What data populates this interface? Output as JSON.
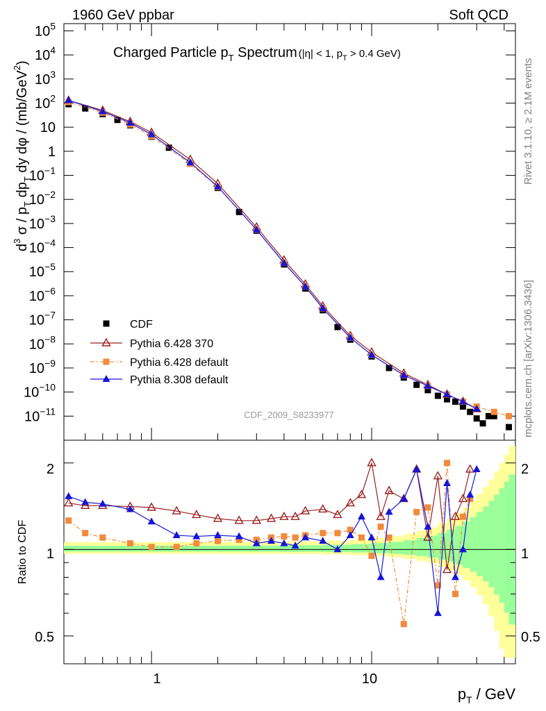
{
  "header": {
    "left": "1960 GeV ppbar",
    "right": "Soft QCD"
  },
  "main_panel": {
    "title_main": "Charged Particle p",
    "title_main_sub": "T",
    "title_main_rest": " Spectrum",
    "title_cut": "(|η| < 1, p",
    "title_cut_sub": "T",
    "title_cut_rest": " > 0.4 GeV)",
    "ylabel": "d³σ / p_T dp_T dy dφ / (mb/GeV²)",
    "analysis_tag": "CDF_2009_S8233977"
  },
  "ratio_panel": {
    "ylabel": "Ratio to CDF",
    "ytick_labels": [
      "2",
      "1",
      "0.5"
    ],
    "ytick_labels_right": [
      "2",
      "1",
      "0.5"
    ]
  },
  "x_axis": {
    "label": "p_T / GeV",
    "tick_labels": [
      "1",
      "10"
    ]
  },
  "side_text": {
    "rivet": "Rivet 3.1.10, ≥ 2.1M events",
    "mcplots": "mcplots.cern.ch [arXiv:1306.3436]"
  },
  "legend": [
    {
      "name": "CDF",
      "marker": "square",
      "color": "#000000"
    },
    {
      "name": "Pythia 6.428 370",
      "marker": "open-triangle",
      "color": "#9a1f1f"
    },
    {
      "name": "Pythia 6.428 default",
      "marker": "square",
      "color": "#f28a3c"
    },
    {
      "name": "Pythia 8.308 default",
      "marker": "triangle",
      "color": "#1515d8"
    }
  ],
  "chart_data": {
    "type": "scatter",
    "title": "Charged Particle pT Spectrum (|η| < 1, pT > 0.4 GeV)",
    "xlabel": "pT / GeV",
    "ylabel": "d3σ / pT dpT dy dφ / (mb/GeV2)",
    "x_scale": "log",
    "y_scale": "log",
    "xlim": [
      0.4,
      45
    ],
    "ylim": [
      1e-12,
      200000
    ],
    "y_tick_values": [
      "1e-11",
      "1e-10",
      "1e-09",
      "1e-08",
      "1e-07",
      "1e-06",
      "1e-05",
      "1e-04",
      "0.001",
      "0.01",
      "0.1",
      "1",
      "10",
      "100",
      "1000",
      "10000",
      "100000"
    ],
    "y_tick_labels": [
      {
        "base": "10",
        "exp": "−11"
      },
      {
        "base": "10",
        "exp": "−10"
      },
      {
        "base": "10",
        "exp": "−9"
      },
      {
        "base": "10",
        "exp": "−8"
      },
      {
        "base": "10",
        "exp": "−7"
      },
      {
        "base": "10",
        "exp": "−6"
      },
      {
        "base": "10",
        "exp": "−5"
      },
      {
        "base": "10",
        "exp": "−4"
      },
      {
        "base": "10",
        "exp": "−3"
      },
      {
        "base": "10",
        "exp": "−2"
      },
      {
        "base": "10",
        "exp": "−1"
      },
      {
        "base": "1",
        "exp": ""
      },
      {
        "base": "10",
        "exp": ""
      },
      {
        "base": "10",
        "exp": "2"
      },
      {
        "base": "10",
        "exp": "3"
      },
      {
        "base": "10",
        "exp": "4"
      },
      {
        "base": "10",
        "exp": "5"
      }
    ],
    "series": [
      {
        "name": "CDF",
        "color": "#000000",
        "marker": "square",
        "x": [
          0.42,
          0.5,
          0.6,
          0.7,
          0.8,
          1.0,
          1.2,
          1.5,
          2.0,
          2.5,
          3.0,
          4.0,
          5.0,
          6.0,
          7.0,
          8.0,
          10.0,
          12.0,
          14.0,
          16.0,
          18.0,
          20.0,
          22.0,
          24.0,
          26.0,
          28.0,
          30.0,
          32.0,
          34.0,
          36.0,
          42.0,
          48.0
        ],
        "y": [
          "90",
          "60",
          "35",
          "20",
          "12",
          "4",
          "1.4",
          "0.3",
          "0.03",
          "0.003",
          "0.0005",
          "0.00002",
          "2e-6",
          "2.5e-7",
          "5e-8",
          "1.5e-8",
          "3e-9",
          "1e-9",
          "4e-10",
          "2e-10",
          "1.2e-10",
          "7e-11",
          "5e-11",
          "4e-11",
          "2.5e-11",
          "1.5e-11",
          "8e-12",
          "5e-12",
          "1e-11",
          "1e-11",
          "3.5e-12",
          "3.5e-12"
        ]
      },
      {
        "name": "Pythia 6.428 370",
        "color": "#9a1f1f",
        "marker": "open-triangle",
        "x": [
          0.42,
          0.6,
          0.8,
          1.0,
          1.5,
          2.0,
          3.0,
          4.0,
          5.0,
          6.0,
          8.0,
          10.0,
          14.0,
          18.0,
          22.0,
          26.0,
          30.0
        ],
        "y": [
          "130",
          "50",
          "17",
          "6",
          "0.45",
          "0.045",
          "0.0007",
          "0.00003",
          "3e-6",
          "3.7e-7",
          "2.2e-8",
          "4.5e-9",
          "6e-10",
          "2e-10",
          "8e-11",
          "4e-11",
          "2e-11"
        ]
      },
      {
        "name": "Pythia 6.428 default",
        "color": "#f28a3c",
        "marker": "square",
        "x": [
          0.42,
          0.6,
          0.8,
          1.0,
          1.5,
          2.0,
          3.0,
          4.0,
          5.0,
          6.0,
          8.0,
          10.0,
          14.0,
          18.0,
          22.0,
          26.0,
          30.0,
          36.0,
          42.0
        ],
        "y": [
          "110",
          "40",
          "13",
          "4.2",
          "0.3",
          "0.033",
          "0.00055",
          "0.000023",
          "2.4e-6",
          "3e-7",
          "1.8e-8",
          "3.5e-9",
          "5e-10",
          "1.8e-10",
          "8e-11",
          "4e-11",
          "2.5e-11",
          "1.5e-11",
          "1e-11"
        ]
      },
      {
        "name": "Pythia 8.308 default",
        "color": "#1515d8",
        "marker": "triangle",
        "x": [
          0.42,
          0.6,
          0.8,
          1.0,
          1.5,
          2.0,
          3.0,
          4.0,
          5.0,
          6.0,
          8.0,
          10.0,
          14.0,
          18.0,
          22.0,
          26.0,
          30.0
        ],
        "y": [
          "130",
          "45",
          "15",
          "5",
          "0.34",
          "0.034",
          "0.00055",
          "0.000023",
          "2.4e-6",
          "3e-7",
          "1.8e-8",
          "3.5e-9",
          "5e-10",
          "1.8e-10",
          "8e-11",
          "4e-11",
          "2e-11"
        ]
      }
    ],
    "ratio": {
      "ylabel": "Ratio to CDF",
      "y_scale": "log",
      "ylim": [
        0.4,
        2.4
      ],
      "y_ticks": [
        0.5,
        1,
        2
      ],
      "series": [
        {
          "name": "Pythia 6.428 370",
          "x": [
            0.42,
            0.5,
            0.6,
            0.8,
            1.0,
            1.3,
            1.6,
            2.0,
            2.5,
            3.0,
            3.5,
            4.0,
            4.5,
            5.0,
            6.0,
            7.0,
            8.0,
            9.0,
            10.0,
            11.0,
            12.0,
            14.0,
            16.0,
            18.0,
            20.0,
            22.0,
            24.0,
            26.0,
            28.0
          ],
          "y": [
            1.45,
            1.42,
            1.42,
            1.41,
            1.4,
            1.36,
            1.32,
            1.28,
            1.26,
            1.26,
            1.28,
            1.3,
            1.3,
            1.36,
            1.38,
            1.32,
            1.45,
            1.55,
            2.0,
            1.3,
            1.6,
            1.5,
            1.9,
            1.1,
            1.8,
            0.85,
            1.3,
            1.5,
            1.9
          ]
        },
        {
          "name": "Pythia 6.428 default",
          "x": [
            0.42,
            0.5,
            0.6,
            0.8,
            1.0,
            1.3,
            1.6,
            2.0,
            2.5,
            3.0,
            3.5,
            4.0,
            4.5,
            5.0,
            6.0,
            7.0,
            8.0,
            9.0,
            10.0,
            11.0,
            12.0,
            14.0,
            16.0,
            18.0,
            20.0,
            22.0,
            24.0,
            26.0,
            28.0
          ],
          "y": [
            1.26,
            1.14,
            1.1,
            1.05,
            1.02,
            1.02,
            1.05,
            1.07,
            1.08,
            1.08,
            1.1,
            1.11,
            1.1,
            1.12,
            1.14,
            1.14,
            1.17,
            1.1,
            0.95,
            1.2,
            1.1,
            0.55,
            1.35,
            1.4,
            0.75,
            2.0,
            0.7,
            1.3,
            1.5
          ]
        },
        {
          "name": "Pythia 8.308 default",
          "x": [
            0.42,
            0.5,
            0.6,
            0.8,
            1.0,
            1.3,
            1.6,
            2.0,
            2.5,
            3.0,
            3.5,
            4.0,
            4.5,
            5.0,
            6.0,
            7.0,
            8.0,
            9.0,
            10.0,
            11.0,
            12.0,
            14.0,
            16.0,
            18.0,
            20.0,
            22.0,
            24.0,
            26.0,
            28.0,
            30.0
          ],
          "y": [
            1.53,
            1.46,
            1.44,
            1.38,
            1.25,
            1.12,
            1.11,
            1.12,
            1.11,
            1.05,
            1.07,
            1.05,
            1.03,
            1.1,
            1.07,
            1.0,
            1.12,
            1.3,
            1.1,
            0.8,
            1.35,
            1.5,
            1.9,
            1.2,
            0.6,
            1.7,
            0.8,
            1.0,
            1.55,
            1.9
          ]
        }
      ]
    }
  }
}
